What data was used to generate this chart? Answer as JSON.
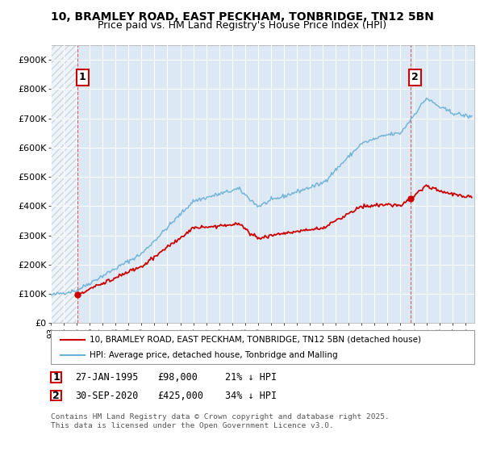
{
  "title": "10, BRAMLEY ROAD, EAST PECKHAM, TONBRIDGE, TN12 5BN",
  "subtitle": "Price paid vs. HM Land Registry's House Price Index (HPI)",
  "hpi_color": "#6ab0d4",
  "price_color": "#cc0000",
  "marker_color": "#cc0000",
  "background_plot": "#dce8f4",
  "legend_label_red": "10, BRAMLEY ROAD, EAST PECKHAM, TONBRIDGE, TN12 5BN (detached house)",
  "legend_label_blue": "HPI: Average price, detached house, Tonbridge and Malling",
  "purchase1_date": "27-JAN-1995",
  "purchase1_price": "£98,000",
  "purchase1_hpi": "21% ↓ HPI",
  "purchase2_date": "30-SEP-2020",
  "purchase2_price": "£425,000",
  "purchase2_hpi": "34% ↓ HPI",
  "footer": "Contains HM Land Registry data © Crown copyright and database right 2025.\nThis data is licensed under the Open Government Licence v3.0.",
  "ylim_max": 950000,
  "yticks": [
    0,
    100000,
    200000,
    300000,
    400000,
    500000,
    600000,
    700000,
    800000,
    900000
  ],
  "purchase1_year": 1995.07,
  "purchase1_value": 98000,
  "purchase2_year": 2020.75,
  "purchase2_value": 425000,
  "xmin": 1993.0,
  "xmax": 2025.7
}
